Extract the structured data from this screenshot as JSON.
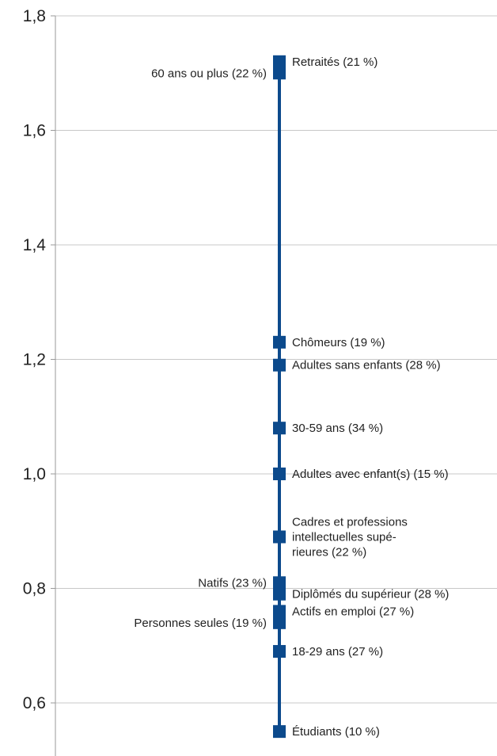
{
  "chart_data": {
    "type": "scatter",
    "title": "",
    "xlabel": "",
    "ylabel": "",
    "ylim": [
      0.55,
      1.8
    ],
    "yticks": [
      "1,8",
      "1,6",
      "1,4",
      "1,2",
      "1,0",
      "0,8",
      "0,6"
    ],
    "ytick_values": [
      1.8,
      1.6,
      1.4,
      1.2,
      1.0,
      0.8,
      0.6
    ],
    "grid": true,
    "colors": {
      "series": "#0c4a8c",
      "grid": "#c8c8c8",
      "axis": "#9a9a9a"
    },
    "points": [
      {
        "label": "Retraités (21 %)",
        "value": 1.72,
        "side": "right"
      },
      {
        "label": "60 ans ou plus (22 %)",
        "value": 1.7,
        "side": "left"
      },
      {
        "label": "Chômeurs (19 %)",
        "value": 1.23,
        "side": "right"
      },
      {
        "label": "Adultes sans enfants (28 %)",
        "value": 1.19,
        "side": "right"
      },
      {
        "label": "30-59 ans (34 %)",
        "value": 1.08,
        "side": "right"
      },
      {
        "label": "Adultes avec enfant(s) (15 %)",
        "value": 1.0,
        "side": "right"
      },
      {
        "label": "Cadres et professions intellectuelles supé- rieures (22 %)",
        "lines": [
          "Cadres et professions",
          "intellectuelles supé-",
          "rieures (22 %)"
        ],
        "value": 0.89,
        "side": "right"
      },
      {
        "label": "Natifs (23 %)",
        "value": 0.81,
        "side": "left"
      },
      {
        "label": "Diplômés du supérieur (28 %)",
        "value": 0.79,
        "side": "right"
      },
      {
        "label": "Actifs en emploi (27 %)",
        "value": 0.76,
        "side": "right"
      },
      {
        "label": "Personnes seules (19 %)",
        "value": 0.74,
        "side": "left"
      },
      {
        "label": "18-29 ans (27 %)",
        "value": 0.69,
        "side": "right"
      },
      {
        "label": "Étudiants (10 %)",
        "value": 0.55,
        "side": "right"
      }
    ]
  }
}
